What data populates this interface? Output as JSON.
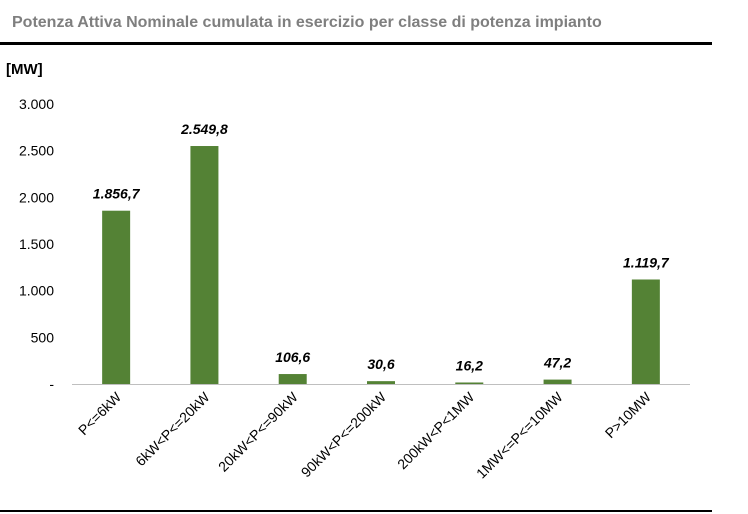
{
  "header": {
    "title": "Potenza Attiva Nominale cumulata in esercizio per classe di potenza impianto"
  },
  "colors": {
    "bar": "#548235",
    "axis": "#bfbfbf",
    "title": "#7f7f7f"
  },
  "chart_data": {
    "type": "bar",
    "title": "Potenza Attiva Nominale cumulata in esercizio per classe di potenza impianto",
    "ylabel": "[MW]",
    "xlabel": "",
    "categories": [
      "P<=6kW",
      "6kW<P<=20kW",
      "20kW<P<=90kW",
      "90kW<P<=200kW",
      "200kW<P<1MW",
      "1MW<=P<=10MW",
      "P>10MW"
    ],
    "values": [
      1856.7,
      2549.8,
      106.6,
      30.6,
      16.2,
      47.2,
      1119.7
    ],
    "data_labels": [
      "1.856,7",
      "2.549,8",
      "106,6",
      "30,6",
      "16,2",
      "47,2",
      "1.119,7"
    ],
    "ylim": [
      0,
      3000
    ],
    "yticks": [
      0,
      500,
      1000,
      1500,
      2000,
      2500,
      3000
    ],
    "ytick_labels": [
      "-",
      "500",
      "1.000",
      "1.500",
      "2.000",
      "2.500",
      "3.000"
    ],
    "grid": false,
    "legend": "none"
  }
}
